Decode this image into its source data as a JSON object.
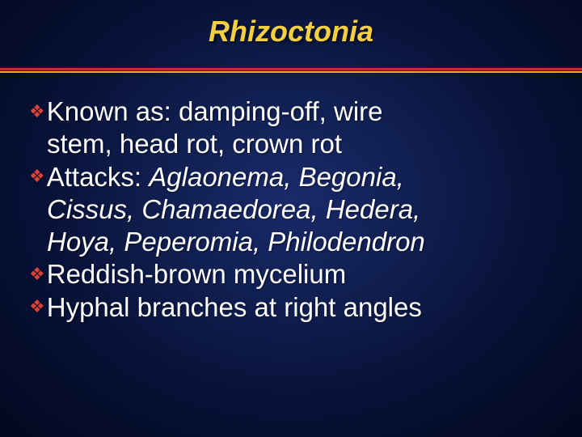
{
  "title": "Rhizoctonia",
  "divider": {
    "color1": "#c03028",
    "color2": "#e8b020"
  },
  "bullets": [
    {
      "lead": "Known",
      "rest1": " as:  damping-off, wire",
      "rest2": "stem, head rot, crown rot"
    },
    {
      "lead": "Attacks:",
      "rest1": "  ",
      "italic1": "Aglaonema, Begonia,",
      "italic2": "Cissus, Chamaedorea, Hedera,",
      "italic3": "Hoya, Peperomia, Philodendron"
    },
    {
      "lead": "Reddish-brown",
      "rest1": " mycelium"
    },
    {
      "lead": "Hyphal",
      "rest1": " branches at right angles"
    }
  ],
  "style": {
    "background_inner": "#1a2a6a",
    "background_outer": "#040820",
    "title_color": "#f4d040",
    "bullet_marker_color": "#d8423a",
    "text_color": "#ffffff",
    "title_fontsize": 36,
    "body_fontsize": 33
  }
}
